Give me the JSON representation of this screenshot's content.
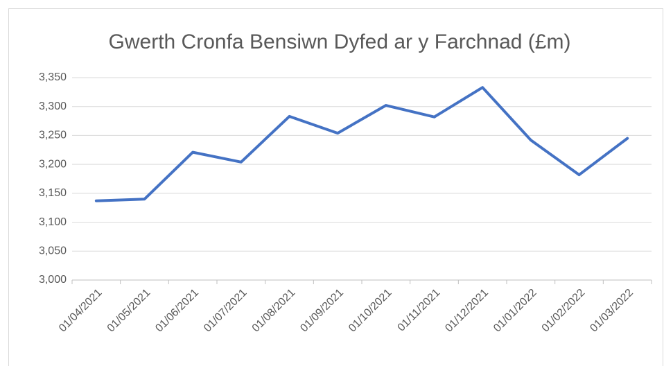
{
  "chart_data": {
    "type": "line",
    "title": "Gwerth Cronfa Bensiwn Dyfed ar y Farchnad (£m)",
    "categories": [
      "01/04/2021",
      "01/05/2021",
      "01/06/2021",
      "01/07/2021",
      "01/08/2021",
      "01/09/2021",
      "01/10/2021",
      "01/11/2021",
      "01/12/2021",
      "01/01/2022",
      "01/02/2022",
      "01/03/2022"
    ],
    "series": [
      {
        "color": "#4472c4",
        "values": [
          3137,
          3140,
          3221,
          3204,
          3283,
          3254,
          3302,
          3282,
          3333,
          3242,
          3182,
          3245
        ]
      }
    ],
    "ylim": [
      3000,
      3350
    ],
    "yticks": [
      {
        "value": 3000,
        "label": "3,000"
      },
      {
        "value": 3050,
        "label": "3,050"
      },
      {
        "value": 3100,
        "label": "3,100"
      },
      {
        "value": 3150,
        "label": "3,150"
      },
      {
        "value": 3200,
        "label": "3,200"
      },
      {
        "value": 3250,
        "label": "3,250"
      },
      {
        "value": 3300,
        "label": "3,300"
      },
      {
        "value": 3350,
        "label": "3,350"
      }
    ],
    "grid": true
  }
}
